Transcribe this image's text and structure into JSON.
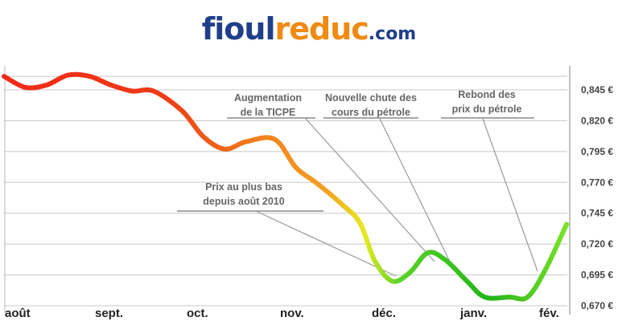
{
  "logo": {
    "part1": "fioul",
    "part2": "reduc",
    "part3": ".com"
  },
  "chart_data": {
    "type": "line",
    "unit": "€",
    "ylim": [
      0.67,
      0.865
    ],
    "y_ticks": [
      "0,670 €",
      "0,695 €",
      "0,720 €",
      "0,745 €",
      "0,770 €",
      "0,795 €",
      "0,820 €",
      "0,845 €"
    ],
    "y_tick_values": [
      0.67,
      0.695,
      0.72,
      0.745,
      0.77,
      0.795,
      0.82,
      0.845
    ],
    "x_ticks": [
      "août",
      "sept.",
      "oct.",
      "nov.",
      "déc.",
      "janv.",
      "fév."
    ],
    "grid": true,
    "series": [
      {
        "points": [
          [
            0.0,
            0.856
          ],
          [
            0.3,
            0.847
          ],
          [
            0.6,
            0.849
          ],
          [
            0.9,
            0.857
          ],
          [
            1.2,
            0.856
          ],
          [
            1.5,
            0.849
          ],
          [
            1.8,
            0.844
          ],
          [
            2.1,
            0.844
          ],
          [
            2.5,
            0.828
          ],
          [
            2.8,
            0.807
          ],
          [
            3.1,
            0.797
          ],
          [
            3.4,
            0.803
          ],
          [
            3.8,
            0.805
          ],
          [
            4.1,
            0.782
          ],
          [
            4.4,
            0.769
          ],
          [
            4.75,
            0.752
          ],
          [
            5.0,
            0.737
          ],
          [
            5.2,
            0.707
          ],
          [
            5.45,
            0.69
          ],
          [
            5.7,
            0.697
          ],
          [
            5.95,
            0.713
          ],
          [
            6.2,
            0.707
          ],
          [
            6.5,
            0.69
          ],
          [
            6.75,
            0.677
          ],
          [
            7.1,
            0.677
          ],
          [
            7.35,
            0.677
          ],
          [
            7.6,
            0.699
          ],
          [
            7.9,
            0.736
          ]
        ]
      }
    ],
    "annotations": [
      {
        "lines": [
          "Augmentation",
          "de la TICPE"
        ]
      },
      {
        "lines": [
          "Nouvelle chute des",
          "cours du pétrole"
        ]
      },
      {
        "lines": [
          "Rebond des",
          "prix du pétrole"
        ]
      },
      {
        "lines": [
          "Prix au plus bas",
          "depuis août 2010"
        ]
      }
    ]
  }
}
